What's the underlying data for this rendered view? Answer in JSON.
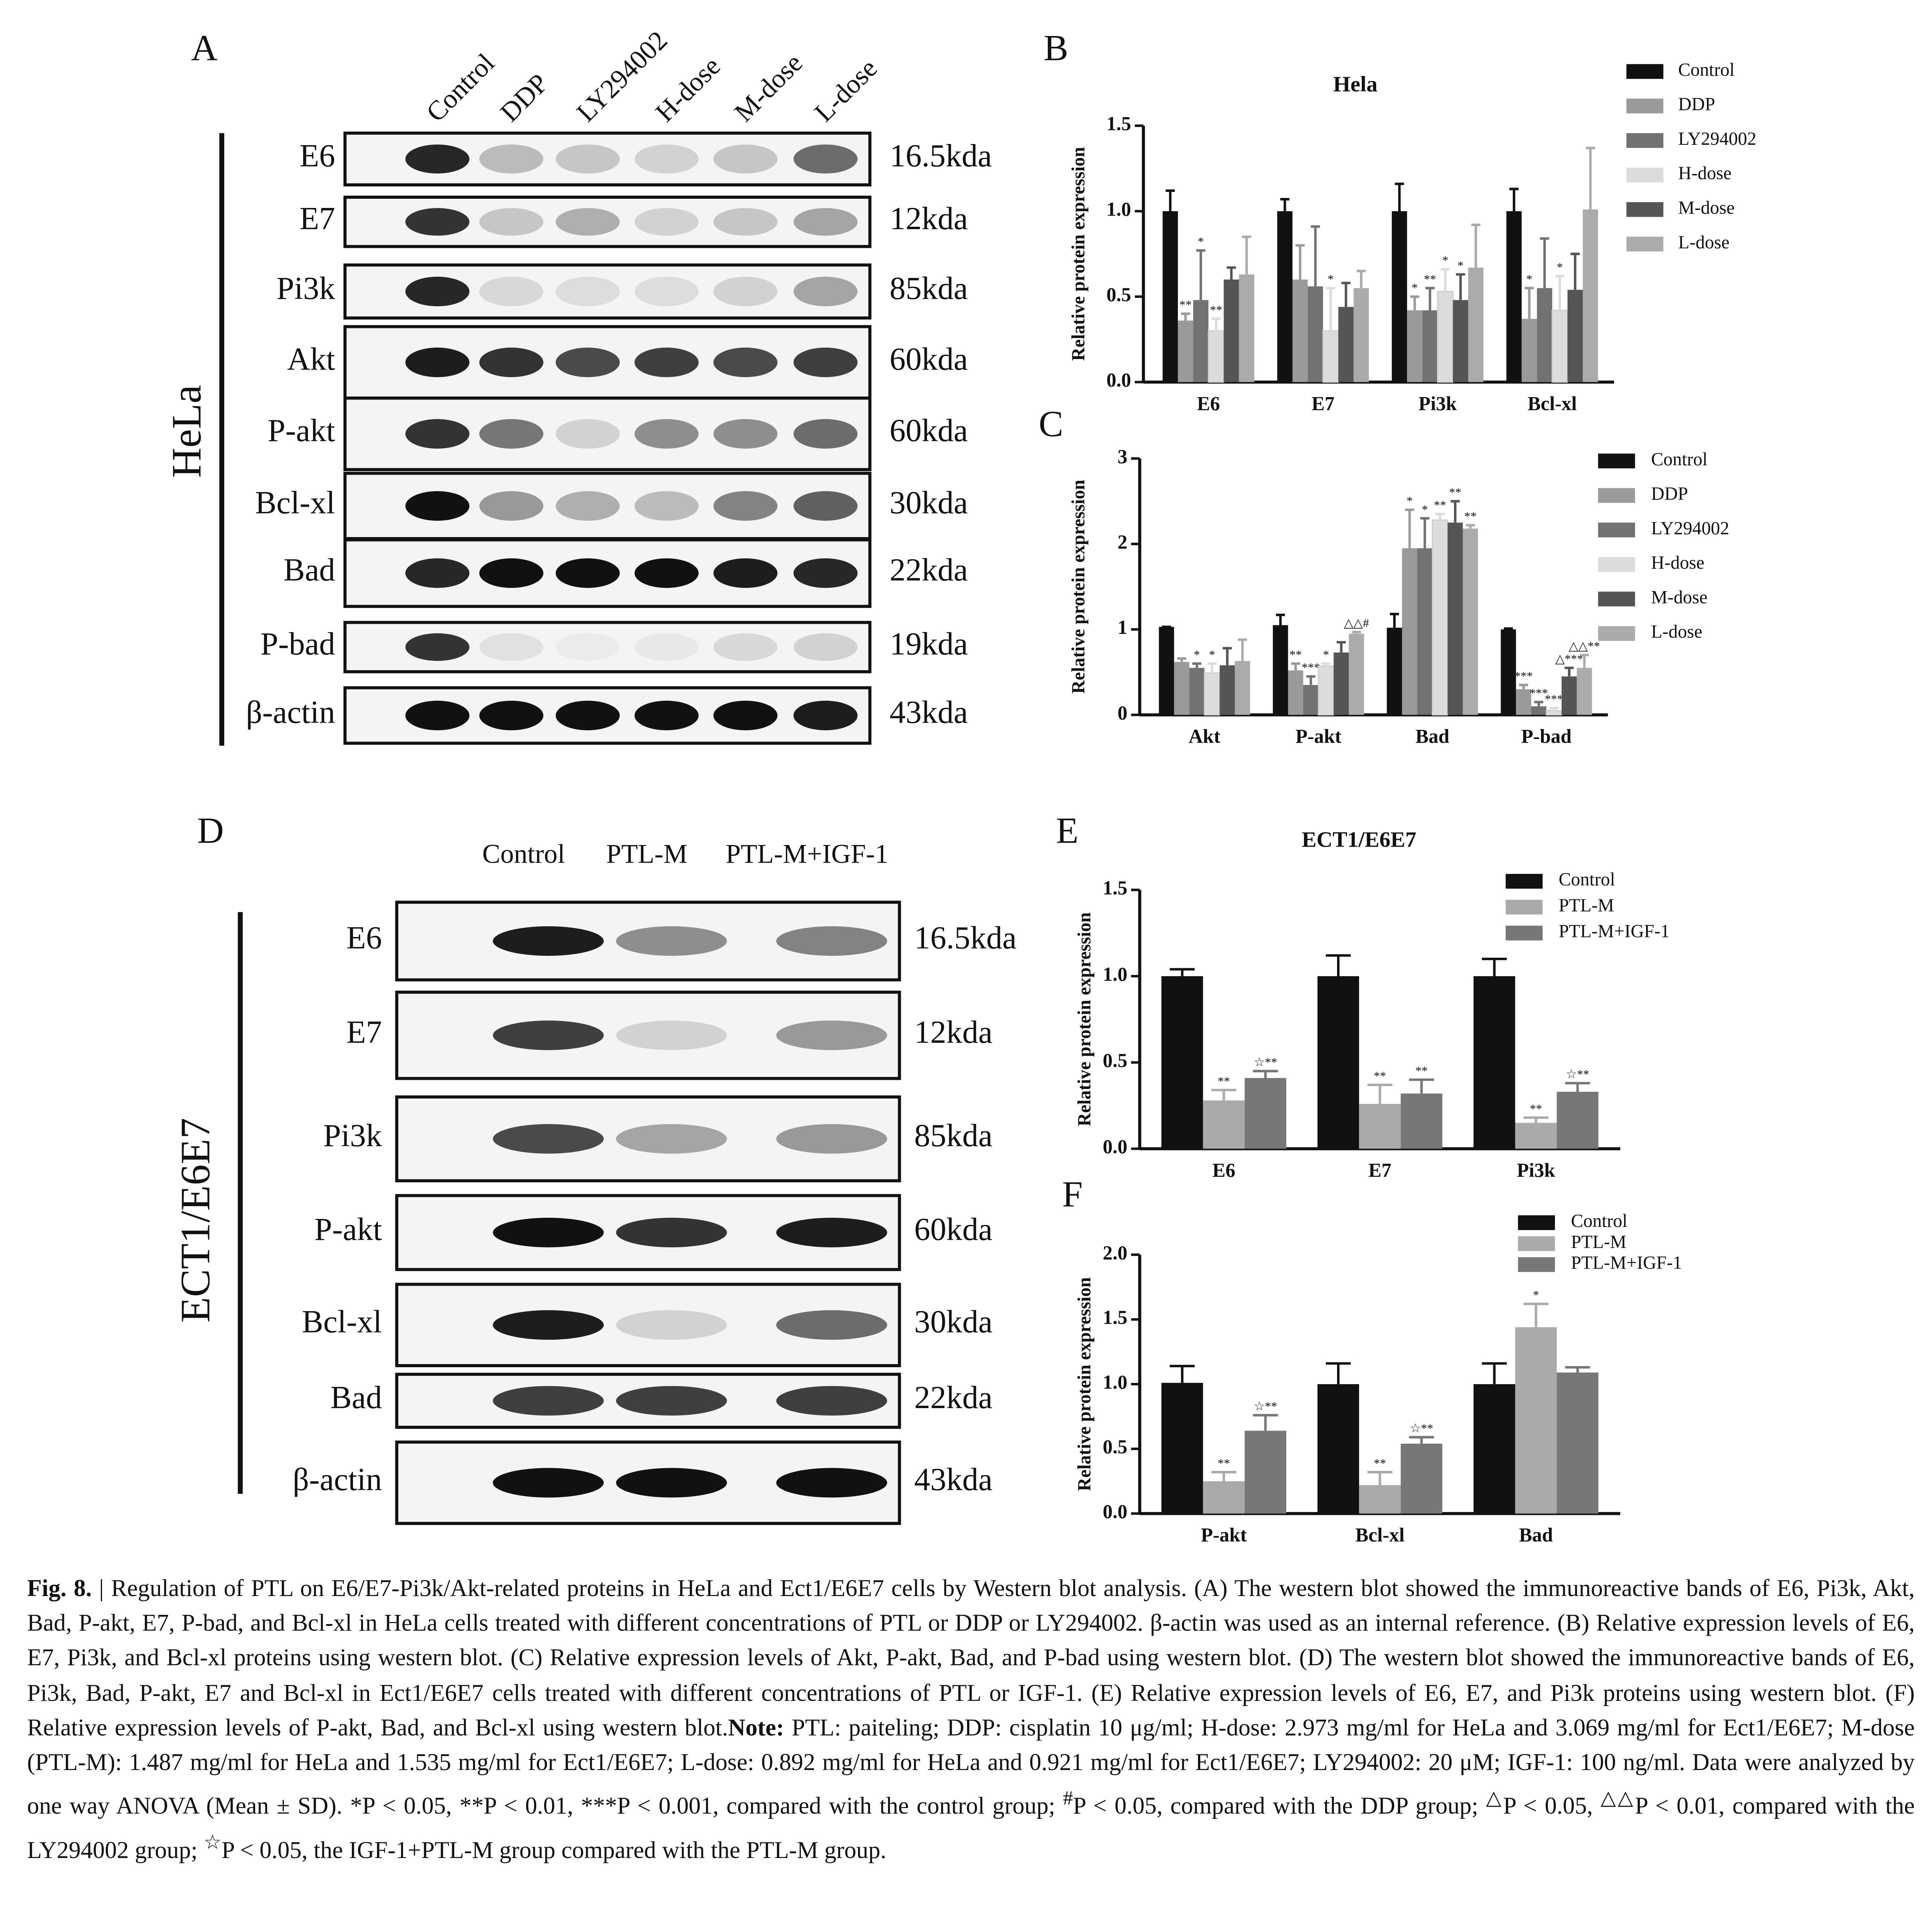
{
  "chart_data": [
    {
      "type": "bar",
      "panel": "B",
      "title": "Hela",
      "ylabel": "Relative protein expression",
      "categories": [
        "E6",
        "E7",
        "Pi3k",
        "Bcl-xl"
      ],
      "ylim": [
        0,
        1.5
      ],
      "yticks": [
        {
          "value": 0,
          "label": "0.0"
        },
        0.5,
        {
          "value": 1,
          "label": "1.0"
        },
        1.5
      ],
      "series": [
        {
          "name": "Control",
          "color": "#111111",
          "values": [
            1.0,
            1.0,
            1.0,
            1.0
          ],
          "errors": [
            0.12,
            0.07,
            0.16,
            0.13
          ],
          "annotations": [
            null,
            null,
            null,
            null
          ]
        },
        {
          "name": "DDP",
          "color": "#9a9a9a",
          "values": [
            0.36,
            0.6,
            0.42,
            0.37
          ],
          "errors": [
            0.04,
            0.2,
            0.08,
            0.18
          ],
          "annotations": [
            "**",
            null,
            "*",
            "*"
          ]
        },
        {
          "name": "LY294002",
          "color": "#727272",
          "values": [
            0.48,
            0.56,
            0.42,
            0.55
          ],
          "errors": [
            0.29,
            0.35,
            0.13,
            0.29
          ],
          "annotations": [
            "*",
            null,
            "**",
            null
          ]
        },
        {
          "name": "H-dose",
          "color": "#dcdcdc",
          "values": [
            0.3,
            0.3,
            0.53,
            0.42
          ],
          "errors": [
            0.07,
            0.25,
            0.13,
            0.2
          ],
          "annotations": [
            "**",
            "*",
            "*",
            "*"
          ]
        },
        {
          "name": "M-dose",
          "color": "#555555",
          "values": [
            0.6,
            0.44,
            0.48,
            0.54
          ],
          "errors": [
            0.07,
            0.14,
            0.15,
            0.21
          ],
          "annotations": [
            null,
            null,
            "*",
            null
          ]
        },
        {
          "name": "L-dose",
          "color": "#ababab",
          "values": [
            0.63,
            0.55,
            0.67,
            1.01
          ],
          "errors": [
            0.22,
            0.1,
            0.25,
            0.36
          ],
          "annotations": [
            null,
            null,
            null,
            null
          ]
        }
      ]
    },
    {
      "type": "bar",
      "panel": "C",
      "ylabel": "Relative protein expression",
      "categories": [
        "Akt",
        "P-akt",
        "Bad",
        "P-bad"
      ],
      "ylim": [
        0,
        3
      ],
      "yticks": [
        0,
        1,
        2,
        3
      ],
      "series": [
        {
          "name": "Control",
          "color": "#111111",
          "values": [
            1.03,
            1.05,
            1.02,
            1.0
          ],
          "errors": [
            0,
            0.12,
            0.16,
            0.01
          ],
          "annotations": [
            null,
            null,
            null,
            null
          ]
        },
        {
          "name": "DDP",
          "color": "#9a9a9a",
          "values": [
            0.62,
            0.52,
            1.95,
            0.3
          ],
          "errors": [
            0.04,
            0.08,
            0.45,
            0.05
          ],
          "annotations": [
            null,
            "**",
            "*",
            "***"
          ]
        },
        {
          "name": "LY294002",
          "color": "#727272",
          "values": [
            0.55,
            0.35,
            1.95,
            0.1
          ],
          "errors": [
            0.05,
            0.1,
            0.35,
            0.05
          ],
          "annotations": [
            "*",
            "***",
            "*",
            "***"
          ]
        },
        {
          "name": "H-dose",
          "color": "#dcdcdc",
          "values": [
            0.49,
            0.57,
            2.28,
            0.05
          ],
          "errors": [
            0.11,
            0.03,
            0.07,
            0.03
          ],
          "annotations": [
            "*",
            "*",
            "**",
            "***"
          ]
        },
        {
          "name": "M-dose",
          "color": "#555555",
          "values": [
            0.58,
            0.73,
            2.25,
            0.45
          ],
          "errors": [
            0.2,
            0.12,
            0.25,
            0.1
          ],
          "annotations": [
            null,
            null,
            "**",
            "△***"
          ]
        },
        {
          "name": "L-dose",
          "color": "#ababab",
          "values": [
            0.63,
            0.95,
            2.18,
            0.55
          ],
          "errors": [
            0.25,
            0.02,
            0.04,
            0.15
          ],
          "annotations": [
            null,
            "△△#",
            "**",
            "△△**"
          ]
        }
      ]
    },
    {
      "type": "bar",
      "panel": "E",
      "title": "ECT1/E6E7",
      "ylabel": "Relative protein expression",
      "categories": [
        "E6",
        "E7",
        "Pi3k"
      ],
      "ylim": [
        0,
        1.5
      ],
      "yticks": [
        {
          "value": 0,
          "label": "0.0"
        },
        0.5,
        {
          "value": 1,
          "label": "1.0"
        },
        1.5
      ],
      "series": [
        {
          "name": "Control",
          "color": "#111111",
          "values": [
            1.0,
            1.0,
            1.0
          ],
          "errors": [
            0.04,
            0.12,
            0.1
          ],
          "annotations": [
            null,
            null,
            null
          ]
        },
        {
          "name": "PTL-M",
          "color": "#aaaaaa",
          "values": [
            0.28,
            0.26,
            0.15
          ],
          "errors": [
            0.06,
            0.11,
            0.03
          ],
          "annotations": [
            "**",
            "**",
            "**"
          ]
        },
        {
          "name": "PTL-M+IGF-1",
          "color": "#777777",
          "values": [
            0.41,
            0.32,
            0.33
          ],
          "errors": [
            0.04,
            0.08,
            0.05
          ],
          "annotations": [
            "☆**",
            "**",
            "☆**"
          ]
        }
      ]
    },
    {
      "type": "bar",
      "panel": "F",
      "ylabel": "Relative protein expression",
      "categories": [
        "P-akt",
        "Bcl-xl",
        "Bad"
      ],
      "ylim": [
        0,
        2
      ],
      "yticks": [
        {
          "value": 0,
          "label": "0.0"
        },
        0.5,
        {
          "value": 1,
          "label": "1.0"
        },
        1.5,
        {
          "value": 2,
          "label": "2.0"
        }
      ],
      "series": [
        {
          "name": "Control",
          "color": "#111111",
          "values": [
            1.01,
            1.0,
            1.0
          ],
          "errors": [
            0.13,
            0.16,
            0.16
          ],
          "annotations": [
            null,
            null,
            null
          ]
        },
        {
          "name": "PTL-M",
          "color": "#aaaaaa",
          "values": [
            0.25,
            0.22,
            1.44
          ],
          "errors": [
            0.07,
            0.1,
            0.18
          ],
          "annotations": [
            "**",
            "**",
            "*"
          ]
        },
        {
          "name": "PTL-M+IGF-1",
          "color": "#777777",
          "values": [
            0.64,
            0.54,
            1.09
          ],
          "errors": [
            0.12,
            0.05,
            0.04
          ],
          "annotations": [
            "☆**",
            "☆**",
            null
          ]
        }
      ]
    }
  ],
  "blots": [
    {
      "panel": "A",
      "cells": "HeLa",
      "lanes": [
        "Control",
        "DDP",
        "LY294002",
        "H-dose",
        "M-dose",
        "L-dose"
      ],
      "rows": [
        {
          "protein": "E6",
          "size": "16.5kda"
        },
        {
          "protein": "E7",
          "size": "12kda"
        },
        {
          "protein": "Pi3k",
          "size": "85kda"
        },
        {
          "protein": "Akt",
          "size": "60kda"
        },
        {
          "protein": "P-akt",
          "size": "60kda"
        },
        {
          "protein": "Bcl-xl",
          "size": "30kda"
        },
        {
          "protein": "Bad",
          "size": "22kda"
        },
        {
          "protein": "P-bad",
          "size": "19kda"
        },
        {
          "protein": "β-actin",
          "size": "43kda"
        }
      ]
    },
    {
      "panel": "D",
      "cells": "ECT1/E6E7",
      "lanes": [
        "Control",
        "PTL-M",
        "PTL-M+IGF-1"
      ],
      "rows": [
        {
          "protein": "E6",
          "size": "16.5kda"
        },
        {
          "protein": "E7",
          "size": "12kda"
        },
        {
          "protein": "Pi3k",
          "size": "85kda"
        },
        {
          "protein": "P-akt",
          "size": "60kda"
        },
        {
          "protein": "Bcl-xl",
          "size": "30kda"
        },
        {
          "protein": "Bad",
          "size": "22kda"
        },
        {
          "protein": "β-actin",
          "size": "43kda"
        }
      ]
    }
  ],
  "caption": [
    {
      "style": "b",
      "text": "Fig. 8."
    },
    {
      "style": "n",
      "text": " | Regulation of PTL on E6/E7-Pi3k/Akt-related proteins in HeLa and Ect1/E6E7 cells by Western blot analysis. (A) The western blot showed the immunoreactive bands of E6, Pi3k, Akt, Bad, P-akt, E7, P-bad, and Bcl-xl in HeLa cells treated with different concentrations of PTL or DDP or LY294002. β-actin was used as an internal reference. (B) Relative expression levels of E6, E7, Pi3k, and Bcl-xl proteins using western blot. (C) Relative expression levels of Akt, P-akt, Bad, and P-bad using western blot. (D) The western blot showed the immunoreactive bands of E6, Pi3k, Bad, P-akt, E7 and Bcl-xl in Ect1/E6E7 cells treated with different concentrations of PTL or IGF-1. (E) Relative expression levels of E6, E7, and Pi3k proteins using western blot. (F) Relative expression levels of P-akt, Bad, and Bcl-xl using western blot."
    },
    {
      "style": "b",
      "text": "Note:"
    },
    {
      "style": "n",
      "text": " PTL: paiteling; DDP: cisplatin 10 μg/ml; H-dose: 2.973 mg/ml for HeLa and 3.069 mg/ml for Ect1/E6E7; M-dose (PTL-M): 1.487 mg/ml for HeLa and 1.535 mg/ml for Ect1/E6E7; L-dose: 0.892 mg/ml for HeLa and 0.921 mg/ml for Ect1/E6E7; LY294002: 20 μM; IGF-1: 100 ng/ml. Data were analyzed by one way ANOVA (Mean ± SD). *P < 0.05, **P < 0.01, ***P < 0.001, compared with the control group; "
    },
    {
      "style": "sup",
      "text": "#"
    },
    {
      "style": "n",
      "text": "P < 0.05, compared with the DDP group; "
    },
    {
      "style": "sup",
      "text": "△"
    },
    {
      "style": "n",
      "text": "P < 0.05, "
    },
    {
      "style": "sup",
      "text": "△△"
    },
    {
      "style": "n",
      "text": "P < 0.01, compared with the LY294002 group; "
    },
    {
      "style": "sup",
      "text": "☆"
    },
    {
      "style": "n",
      "text": "P < 0.05, the IGF-1+PTL-M group compared with the PTL-M group."
    }
  ]
}
